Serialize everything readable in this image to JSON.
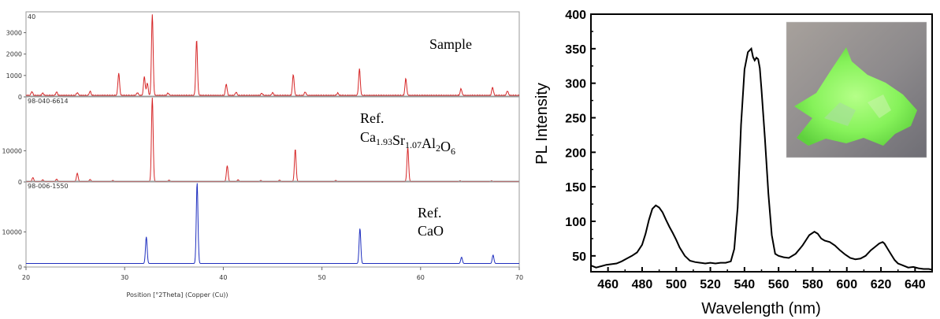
{
  "chart_data": [
    {
      "type": "line",
      "subtype": "stacked-xrd-panels",
      "xlabel": "Position [°2Theta] (Copper (Cu))",
      "xlim": [
        20,
        70
      ],
      "xticks": [
        "20",
        "30",
        "40",
        "50",
        "60",
        "70"
      ],
      "panels": [
        {
          "id": "sample",
          "corner_label": "40",
          "label": "Sample",
          "color": "#d62728",
          "ylim": [
            0,
            3900
          ],
          "yticks": [
            "0",
            "1000",
            "2000",
            "3000"
          ],
          "baseline": 70,
          "peaks": [
            {
              "x": 20.6,
              "y": 250
            },
            {
              "x": 21.7,
              "y": 180
            },
            {
              "x": 23.1,
              "y": 230
            },
            {
              "x": 25.2,
              "y": 200
            },
            {
              "x": 26.5,
              "y": 260
            },
            {
              "x": 29.4,
              "y": 1100
            },
            {
              "x": 31.3,
              "y": 200
            },
            {
              "x": 32.0,
              "y": 950
            },
            {
              "x": 32.3,
              "y": 650
            },
            {
              "x": 32.8,
              "y": 3850
            },
            {
              "x": 34.4,
              "y": 180
            },
            {
              "x": 37.3,
              "y": 2650
            },
            {
              "x": 40.3,
              "y": 600
            },
            {
              "x": 41.3,
              "y": 220
            },
            {
              "x": 43.9,
              "y": 170
            },
            {
              "x": 45.0,
              "y": 200
            },
            {
              "x": 47.1,
              "y": 1050
            },
            {
              "x": 48.3,
              "y": 230
            },
            {
              "x": 51.6,
              "y": 180
            },
            {
              "x": 53.8,
              "y": 1300
            },
            {
              "x": 58.5,
              "y": 850
            },
            {
              "x": 64.1,
              "y": 380
            },
            {
              "x": 67.3,
              "y": 450
            },
            {
              "x": 68.8,
              "y": 280
            }
          ]
        },
        {
          "id": "ref-ca1.93",
          "corner_label": "98-040-6614",
          "label": "Ref.",
          "formula": [
            {
              "t": "Ca"
            },
            {
              "t": "1.93",
              "sub": true
            },
            {
              "t": "Sr"
            },
            {
              "t": "1.07",
              "sub": true
            },
            {
              "t": "Al"
            },
            {
              "t": "2",
              "sub": true
            },
            {
              "t": "O"
            },
            {
              "t": "6",
              "sub": true
            }
          ],
          "color": "#d62728",
          "ylim": [
            0,
            27000
          ],
          "yticks": [
            "0",
            "10000"
          ],
          "baseline": 150,
          "peaks": [
            {
              "x": 20.7,
              "y": 1400
            },
            {
              "x": 21.7,
              "y": 700
            },
            {
              "x": 23.1,
              "y": 900
            },
            {
              "x": 25.2,
              "y": 2800
            },
            {
              "x": 26.5,
              "y": 800
            },
            {
              "x": 28.8,
              "y": 500
            },
            {
              "x": 32.8,
              "y": 27000
            },
            {
              "x": 34.5,
              "y": 600
            },
            {
              "x": 40.4,
              "y": 5200
            },
            {
              "x": 41.5,
              "y": 700
            },
            {
              "x": 43.8,
              "y": 500
            },
            {
              "x": 45.7,
              "y": 600
            },
            {
              "x": 47.3,
              "y": 10500
            },
            {
              "x": 51.4,
              "y": 500
            },
            {
              "x": 58.7,
              "y": 11000
            },
            {
              "x": 64.0,
              "y": 400
            },
            {
              "x": 67.2,
              "y": 400
            }
          ]
        },
        {
          "id": "ref-cao",
          "corner_label": "98-006-1550",
          "label": "Ref.",
          "label2": "CaO",
          "color": "#1f2fbf",
          "ylim": [
            0,
            24000
          ],
          "yticks": [
            "0",
            "10000"
          ],
          "baseline": 1000,
          "peaks": [
            {
              "x": 32.2,
              "y": 8600
            },
            {
              "x": 37.35,
              "y": 24000
            },
            {
              "x": 53.85,
              "y": 11000
            },
            {
              "x": 64.15,
              "y": 2800
            },
            {
              "x": 67.35,
              "y": 3400
            }
          ]
        }
      ]
    },
    {
      "type": "line",
      "xlabel": "Wavelength (nm)",
      "ylabel": "PL Intensity",
      "xlim": [
        450,
        650
      ],
      "ylim": [
        27,
        400
      ],
      "xticks": [
        "460",
        "480",
        "500",
        "520",
        "540",
        "560",
        "580",
        "600",
        "620",
        "640"
      ],
      "yticks": [
        "50",
        "100",
        "150",
        "200",
        "250",
        "300",
        "350",
        "400"
      ],
      "line_color": "#000000",
      "inset": "photo of green-emitting phosphor powder",
      "series": [
        {
          "x": [
            450,
            453,
            456,
            459,
            462,
            465,
            468,
            471,
            474,
            477,
            480,
            482,
            484,
            486,
            488,
            490,
            492,
            494,
            496,
            498,
            500,
            502,
            505,
            508,
            511,
            514,
            517,
            520,
            523,
            526,
            529,
            532,
            534,
            536,
            538,
            540,
            542,
            544,
            545,
            546,
            547,
            548,
            549,
            550,
            552,
            554,
            556,
            558,
            560,
            563,
            566,
            570,
            574,
            578,
            581,
            583,
            585,
            587,
            590,
            593,
            596,
            599,
            602,
            605,
            608,
            611,
            614,
            617,
            619,
            621,
            622,
            624,
            626,
            628,
            630,
            633,
            636,
            639,
            642,
            645,
            648,
            650
          ],
          "y": [
            36,
            33,
            35,
            37,
            38,
            39,
            42,
            46,
            50,
            55,
            66,
            82,
            102,
            118,
            123,
            120,
            113,
            102,
            92,
            83,
            73,
            62,
            50,
            43,
            41,
            40,
            39,
            40,
            39,
            40,
            40,
            42,
            60,
            120,
            240,
            320,
            345,
            350,
            338,
            333,
            337,
            335,
            322,
            290,
            220,
            140,
            80,
            53,
            50,
            48,
            47,
            53,
            65,
            80,
            85,
            82,
            75,
            72,
            70,
            65,
            58,
            52,
            47,
            45,
            46,
            50,
            58,
            64,
            68,
            70,
            68,
            60,
            52,
            44,
            39,
            36,
            33,
            34,
            32,
            31,
            31,
            30
          ]
        }
      ]
    }
  ]
}
